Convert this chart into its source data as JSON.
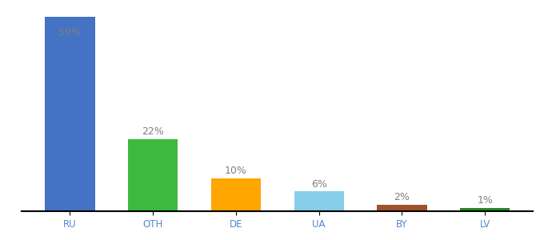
{
  "categories": [
    "RU",
    "OTH",
    "DE",
    "UA",
    "BY",
    "LV"
  ],
  "values": [
    59,
    22,
    10,
    6,
    2,
    1
  ],
  "labels": [
    "59%",
    "22%",
    "10%",
    "6%",
    "2%",
    "1%"
  ],
  "bar_colors": [
    "#4472c4",
    "#3dba3d",
    "#ffa500",
    "#87ceeb",
    "#a0522d",
    "#228b22"
  ],
  "ylim": [
    0,
    62
  ],
  "background_color": "#ffffff",
  "label_color": "#808080",
  "label_fontsize": 9,
  "tick_fontsize": 8.5,
  "bar_width": 0.6,
  "tick_color": "#5588cc"
}
